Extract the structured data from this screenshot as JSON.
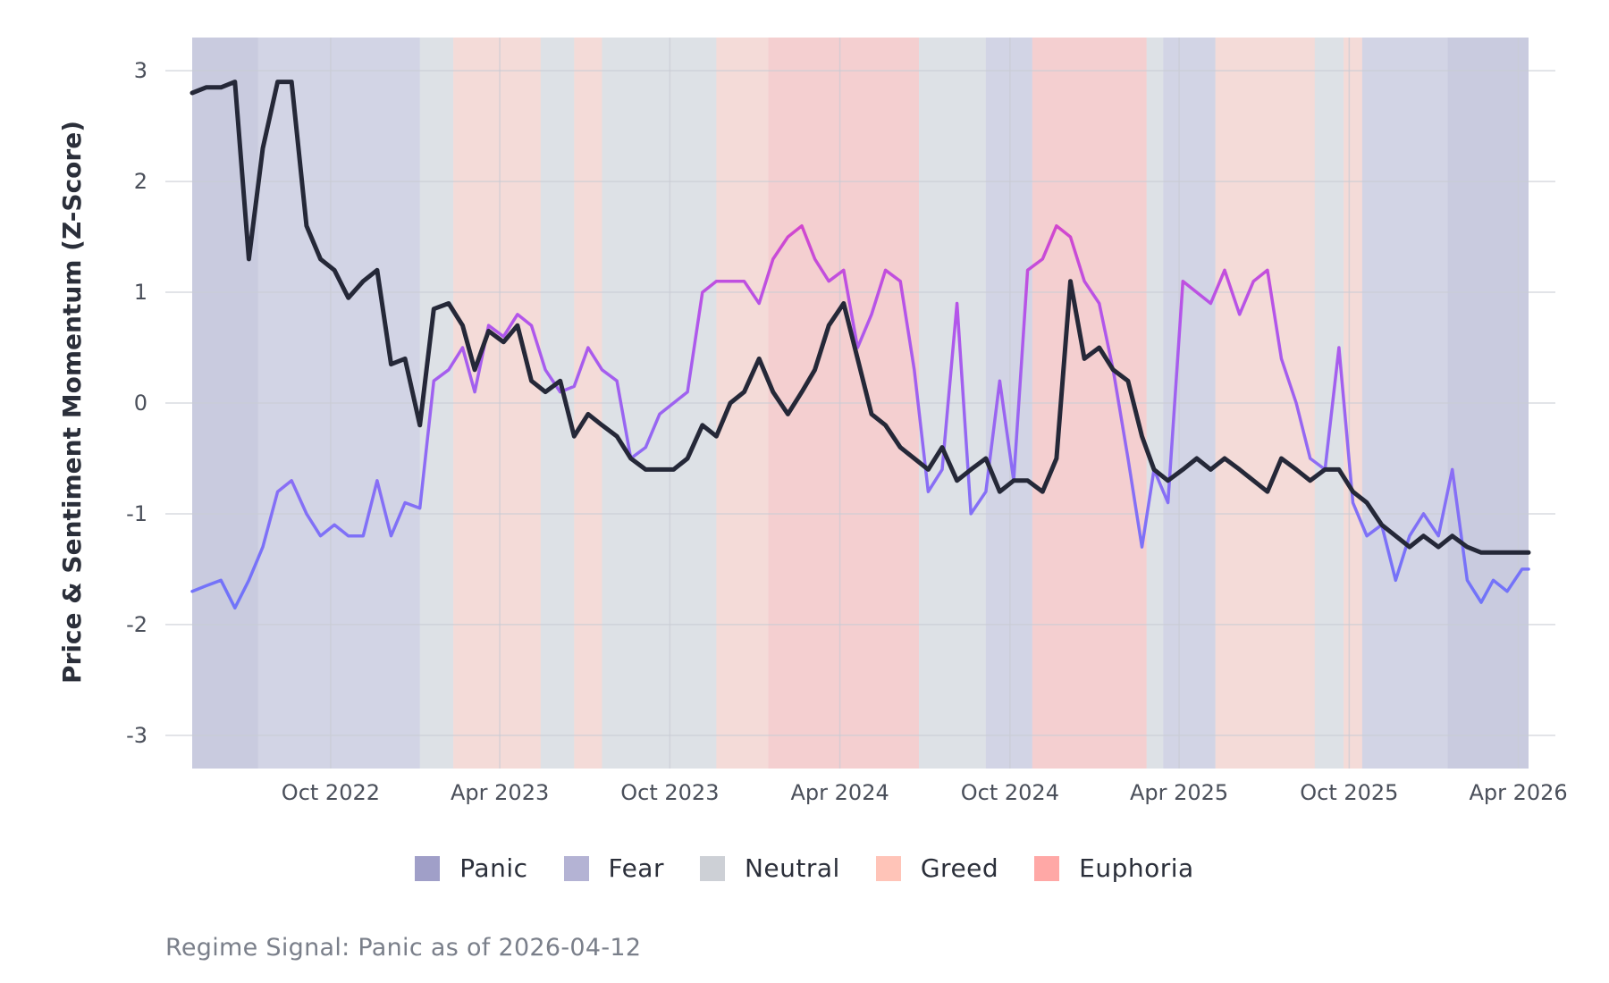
{
  "chart_data": {
    "type": "line",
    "xlabel": "",
    "ylabel": "Price & Sentiment Momentum (Z-Score)",
    "ylim": [
      -3.3,
      3.3
    ],
    "y_ticks": [
      3,
      2,
      1,
      0,
      -1,
      -2,
      -3
    ],
    "x_ticks": [
      {
        "date": "2022-10-01",
        "label": "Oct 2022"
      },
      {
        "date": "2023-04-01",
        "label": "Apr 2023"
      },
      {
        "date": "2023-10-01",
        "label": "Oct 2023"
      },
      {
        "date": "2024-04-01",
        "label": "Apr 2024"
      },
      {
        "date": "2024-10-01",
        "label": "Oct 2024"
      },
      {
        "date": "2025-04-01",
        "label": "Apr 2025"
      },
      {
        "date": "2025-10-01",
        "label": "Oct 2025"
      },
      {
        "date": "2026-04-01",
        "label": "Apr 2026"
      }
    ],
    "xlim": [
      "2022-05-05",
      "2026-04-12"
    ],
    "grid": true,
    "legend_position": "bottom",
    "regime_colors": {
      "Panic": "#a09fc8",
      "Fear": "#b4b3d4",
      "Neutral": "#cdd0d6",
      "Greed": "#ffc4b8",
      "Euphoria": "#ffa8a6"
    },
    "regime_periods": [
      {
        "start": "2022-05-05",
        "end": "2022-07-15",
        "regime": "Panic"
      },
      {
        "start": "2022-07-15",
        "end": "2023-01-05",
        "regime": "Fear"
      },
      {
        "start": "2023-01-05",
        "end": "2023-02-10",
        "regime": "Neutral"
      },
      {
        "start": "2023-02-10",
        "end": "2023-05-15",
        "regime": "Greed"
      },
      {
        "start": "2023-05-15",
        "end": "2023-06-20",
        "regime": "Neutral"
      },
      {
        "start": "2023-06-20",
        "end": "2023-07-20",
        "regime": "Greed"
      },
      {
        "start": "2023-07-20",
        "end": "2023-11-20",
        "regime": "Neutral"
      },
      {
        "start": "2023-11-20",
        "end": "2024-01-15",
        "regime": "Greed"
      },
      {
        "start": "2024-01-15",
        "end": "2024-06-25",
        "regime": "Euphoria"
      },
      {
        "start": "2024-06-25",
        "end": "2024-09-05",
        "regime": "Neutral"
      },
      {
        "start": "2024-09-05",
        "end": "2024-10-25",
        "regime": "Fear"
      },
      {
        "start": "2024-10-25",
        "end": "2025-02-25",
        "regime": "Euphoria"
      },
      {
        "start": "2025-02-25",
        "end": "2025-03-15",
        "regime": "Neutral"
      },
      {
        "start": "2025-03-15",
        "end": "2025-05-10",
        "regime": "Fear"
      },
      {
        "start": "2025-05-10",
        "end": "2025-08-25",
        "regime": "Greed"
      },
      {
        "start": "2025-08-25",
        "end": "2025-09-25",
        "regime": "Neutral"
      },
      {
        "start": "2025-09-25",
        "end": "2025-10-15",
        "regime": "Greed"
      },
      {
        "start": "2025-10-15",
        "end": "2026-01-15",
        "regime": "Fear"
      },
      {
        "start": "2026-01-15",
        "end": "2026-04-12",
        "regime": "Panic"
      }
    ],
    "series": [
      {
        "color": "#252838",
        "x": [
          "2022-05-05",
          "2022-05-20",
          "2022-06-05",
          "2022-06-20",
          "2022-07-05",
          "2022-07-20",
          "2022-08-05",
          "2022-08-20",
          "2022-09-05",
          "2022-09-20",
          "2022-10-05",
          "2022-10-20",
          "2022-11-05",
          "2022-11-20",
          "2022-12-05",
          "2022-12-20",
          "2023-01-05",
          "2023-01-20",
          "2023-02-05",
          "2023-02-20",
          "2023-03-05",
          "2023-03-20",
          "2023-04-05",
          "2023-04-20",
          "2023-05-05",
          "2023-05-20",
          "2023-06-05",
          "2023-06-20",
          "2023-07-05",
          "2023-07-20",
          "2023-08-05",
          "2023-08-20",
          "2023-09-05",
          "2023-09-20",
          "2023-10-05",
          "2023-10-20",
          "2023-11-05",
          "2023-11-20",
          "2023-12-05",
          "2023-12-20",
          "2024-01-05",
          "2024-01-20",
          "2024-02-05",
          "2024-02-20",
          "2024-03-05",
          "2024-03-20",
          "2024-04-05",
          "2024-04-20",
          "2024-05-05",
          "2024-05-20",
          "2024-06-05",
          "2024-06-20",
          "2024-07-05",
          "2024-07-20",
          "2024-08-05",
          "2024-08-20",
          "2024-09-05",
          "2024-09-20",
          "2024-10-05",
          "2024-10-20",
          "2024-11-05",
          "2024-11-20",
          "2024-12-05",
          "2024-12-20",
          "2025-01-05",
          "2025-01-20",
          "2025-02-05",
          "2025-02-20",
          "2025-03-05",
          "2025-03-20",
          "2025-04-05",
          "2025-04-20",
          "2025-05-05",
          "2025-05-20",
          "2025-06-05",
          "2025-06-20",
          "2025-07-05",
          "2025-07-20",
          "2025-08-05",
          "2025-08-20",
          "2025-09-05",
          "2025-09-20",
          "2025-10-05",
          "2025-10-20",
          "2025-11-05",
          "2025-11-20",
          "2025-12-05",
          "2025-12-20",
          "2026-01-05",
          "2026-01-20",
          "2026-02-05",
          "2026-02-20",
          "2026-03-05",
          "2026-03-20",
          "2026-04-05",
          "2026-04-12"
        ],
        "values": [
          2.8,
          2.85,
          2.85,
          2.9,
          1.3,
          2.3,
          2.9,
          2.9,
          1.6,
          1.3,
          1.2,
          0.95,
          1.1,
          1.2,
          0.35,
          0.4,
          -0.2,
          0.85,
          0.9,
          0.7,
          0.3,
          0.65,
          0.55,
          0.7,
          0.2,
          0.1,
          0.2,
          -0.3,
          -0.1,
          -0.2,
          -0.3,
          -0.5,
          -0.6,
          -0.6,
          -0.6,
          -0.5,
          -0.2,
          -0.3,
          0.0,
          0.1,
          0.4,
          0.1,
          -0.1,
          0.1,
          0.3,
          0.7,
          0.9,
          0.4,
          -0.1,
          -0.2,
          -0.4,
          -0.5,
          -0.6,
          -0.4,
          -0.7,
          -0.6,
          -0.5,
          -0.8,
          -0.7,
          -0.7,
          -0.8,
          -0.5,
          1.1,
          0.4,
          0.5,
          0.3,
          0.2,
          -0.3,
          -0.6,
          -0.7,
          -0.6,
          -0.5,
          -0.6,
          -0.5,
          -0.6,
          -0.7,
          -0.8,
          -0.5,
          -0.6,
          -0.7,
          -0.6,
          -0.6,
          -0.8,
          -0.9,
          -1.1,
          -1.2,
          -1.3,
          -1.2,
          -1.3,
          -1.2,
          -1.3,
          -1.35,
          -1.35,
          -1.35,
          -1.35,
          -1.35
        ]
      },
      {
        "color": "#8a70f0",
        "x": [
          "2022-05-05",
          "2022-05-20",
          "2022-06-05",
          "2022-06-20",
          "2022-07-05",
          "2022-07-20",
          "2022-08-05",
          "2022-08-20",
          "2022-09-05",
          "2022-09-20",
          "2022-10-05",
          "2022-10-20",
          "2022-11-05",
          "2022-11-20",
          "2022-12-05",
          "2022-12-20",
          "2023-01-05",
          "2023-01-20",
          "2023-02-05",
          "2023-02-20",
          "2023-03-05",
          "2023-03-20",
          "2023-04-05",
          "2023-04-20",
          "2023-05-05",
          "2023-05-20",
          "2023-06-05",
          "2023-06-20",
          "2023-07-05",
          "2023-07-20",
          "2023-08-05",
          "2023-08-20",
          "2023-09-05",
          "2023-09-20",
          "2023-10-05",
          "2023-10-20",
          "2023-11-05",
          "2023-11-20",
          "2023-12-05",
          "2023-12-20",
          "2024-01-05",
          "2024-01-20",
          "2024-02-05",
          "2024-02-20",
          "2024-03-05",
          "2024-03-20",
          "2024-04-05",
          "2024-04-20",
          "2024-05-05",
          "2024-05-20",
          "2024-06-05",
          "2024-06-20",
          "2024-07-05",
          "2024-07-20",
          "2024-08-05",
          "2024-08-20",
          "2024-09-05",
          "2024-09-20",
          "2024-10-05",
          "2024-10-20",
          "2024-11-05",
          "2024-11-20",
          "2024-12-05",
          "2024-12-20",
          "2025-01-05",
          "2025-01-20",
          "2025-02-05",
          "2025-02-20",
          "2025-03-05",
          "2025-03-20",
          "2025-04-05",
          "2025-04-20",
          "2025-05-05",
          "2025-05-20",
          "2025-06-05",
          "2025-06-20",
          "2025-07-05",
          "2025-07-20",
          "2025-08-05",
          "2025-08-20",
          "2025-09-05",
          "2025-09-20",
          "2025-10-05",
          "2025-10-20",
          "2025-11-05",
          "2025-11-20",
          "2025-12-05",
          "2025-12-20",
          "2026-01-05",
          "2026-01-20",
          "2026-02-05",
          "2026-02-20",
          "2026-03-05",
          "2026-03-20",
          "2026-04-05",
          "2026-04-12"
        ],
        "values": [
          -1.7,
          -1.65,
          -1.6,
          -1.85,
          -1.6,
          -1.3,
          -0.8,
          -0.7,
          -1.0,
          -1.2,
          -1.1,
          -1.2,
          -1.2,
          -0.7,
          -1.2,
          -0.9,
          -0.95,
          0.2,
          0.3,
          0.5,
          0.1,
          0.7,
          0.6,
          0.8,
          0.7,
          0.3,
          0.1,
          0.15,
          0.5,
          0.3,
          0.2,
          -0.5,
          -0.4,
          -0.1,
          0.0,
          0.1,
          1.0,
          1.1,
          1.1,
          1.1,
          0.9,
          1.3,
          1.5,
          1.6,
          1.3,
          1.1,
          1.2,
          0.5,
          0.8,
          1.2,
          1.1,
          0.3,
          -0.8,
          -0.6,
          0.9,
          -1.0,
          -0.8,
          0.2,
          -0.7,
          1.2,
          1.3,
          1.6,
          1.5,
          1.1,
          0.9,
          0.3,
          -0.5,
          -1.3,
          -0.6,
          -0.9,
          1.1,
          1.0,
          0.9,
          1.2,
          0.8,
          1.1,
          1.2,
          0.4,
          0.0,
          -0.5,
          -0.6,
          0.5,
          -0.9,
          -1.2,
          -1.1,
          -1.6,
          -1.2,
          -1.0,
          -1.2,
          -0.6,
          -1.6,
          -1.8,
          -1.6,
          -1.7,
          -1.5,
          -1.5
        ]
      }
    ]
  },
  "legend": {
    "items": [
      {
        "label": "Panic",
        "color": "#a09fc8"
      },
      {
        "label": "Fear",
        "color": "#b4b3d4"
      },
      {
        "label": "Neutral",
        "color": "#cdd0d6"
      },
      {
        "label": "Greed",
        "color": "#ffc4b8"
      },
      {
        "label": "Euphoria",
        "color": "#ffa8a6"
      }
    ]
  },
  "caption": "Regime Signal: Panic as of 2026-04-12"
}
